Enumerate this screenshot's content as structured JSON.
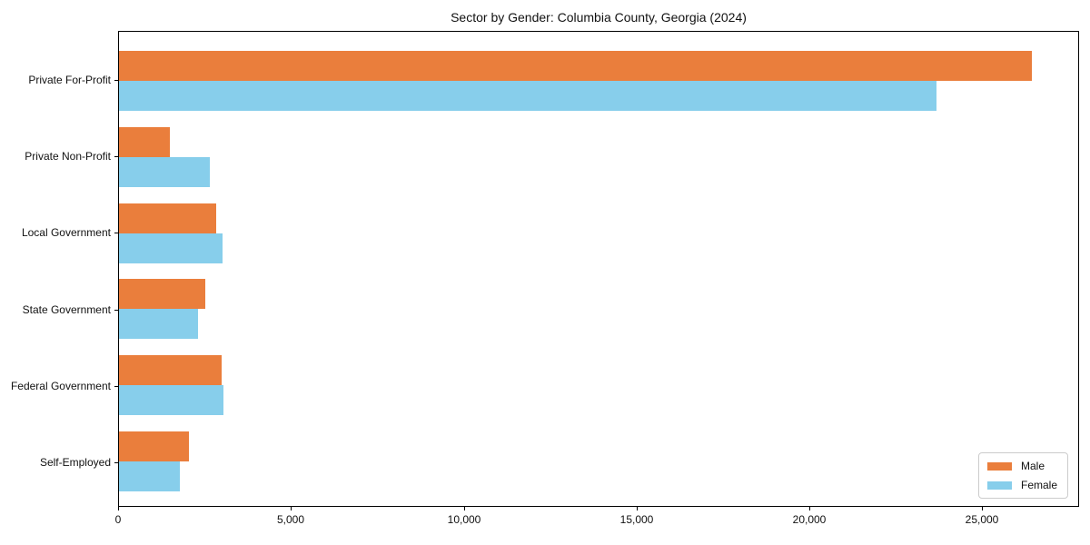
{
  "chart_data": {
    "type": "bar",
    "orientation": "horizontal",
    "title": "Sector by Gender: Columbia County, Georgia (2024)",
    "categories": [
      "Private For-Profit",
      "Private Non-Profit",
      "Local Government",
      "State Government",
      "Federal Government",
      "Self-Employed"
    ],
    "series": [
      {
        "name": "Male",
        "color": "#ea7e3c",
        "values": [
          26400,
          1470,
          2810,
          2500,
          2970,
          2020
        ]
      },
      {
        "name": "Female",
        "color": "#87ceeb",
        "values": [
          23650,
          2630,
          2990,
          2290,
          3020,
          1760
        ]
      }
    ],
    "xlabel": "",
    "ylabel": "",
    "xlim": [
      0,
      27750
    ],
    "xticks": {
      "values": [
        0,
        5000,
        10000,
        15000,
        20000,
        25000
      ],
      "labels": [
        "0",
        "5,000",
        "10,000",
        "15,000",
        "20,000",
        "25,000"
      ]
    },
    "legend": {
      "position": "lower right",
      "entries": [
        "Male",
        "Female"
      ]
    },
    "grid": false,
    "spine_color": "#000000",
    "background": "#ffffff"
  }
}
